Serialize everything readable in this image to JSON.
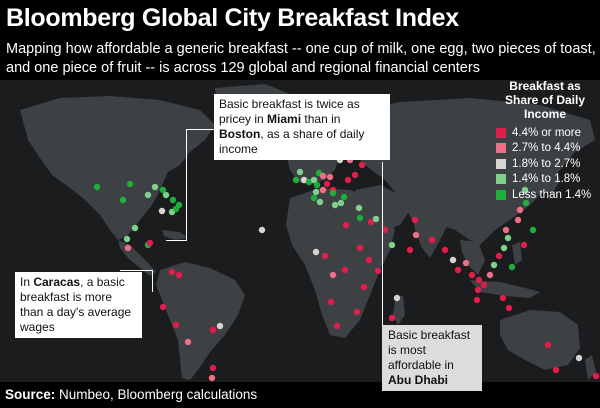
{
  "title": "Bloomberg Global City Breakfast Index",
  "subtitle": "Mapping how affordable a generic breakfast -- one cup of milk, one egg, two pieces of toast, and one piece of fruit -- is across 129 global and regional financial centers",
  "legend": {
    "title": "Breakfast as Share of Daily Income",
    "items": [
      {
        "label": "4.4% or more",
        "color": "#e11d4b"
      },
      {
        "label": "2.7% to 4.4%",
        "color": "#ee6f86"
      },
      {
        "label": "1.8% to 2.7%",
        "color": "#d9d4d1"
      },
      {
        "label": "1.4% to 1.8%",
        "color": "#7fd08c"
      },
      {
        "label": "Less than 1.4%",
        "color": "#1fae3b"
      }
    ]
  },
  "callouts": {
    "miami": {
      "p1": "Basic breakfast is twice as pricey in ",
      "b1": "Miami",
      "p2": " than in ",
      "b2": "Boston",
      "p3": ", as a share of daily income"
    },
    "caracas": {
      "p1": "In ",
      "b1": "Caracas",
      "p2": ", a basic breakfast is more than a day's average wages"
    },
    "abudhabi": {
      "p1": "Basic breakfast is most affordable in ",
      "b1": "Abu Dhabi"
    }
  },
  "source": {
    "label": "Source:",
    "text": " Numbeo, Bloomberg calculations"
  },
  "colors": {
    "map_background": "#1a1c1e",
    "land": "#3d4144",
    "page_background": "#000000"
  }
}
